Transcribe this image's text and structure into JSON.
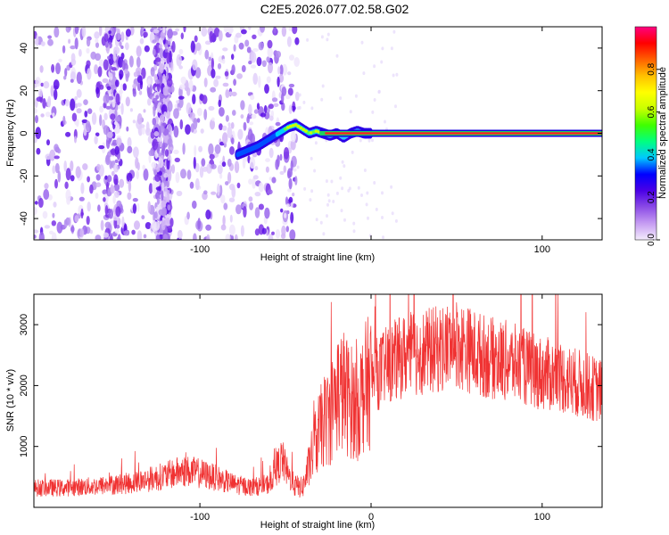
{
  "page": {
    "title": "C2E5.2026.077.02.58.G02"
  },
  "chart_data": [
    {
      "type": "heatmap",
      "name": "spectrogram",
      "xlabel": "Height of straight line (km)",
      "ylabel": "Frequency (Hz)",
      "xlim": [
        -197,
        135
      ],
      "ylim": [
        -50,
        50
      ],
      "x_ticks": [
        -100,
        0,
        100
      ],
      "x_tick_labels": [
        "-100",
        "",
        "100"
      ],
      "y_ticks": [
        -40,
        -20,
        0,
        20,
        40
      ],
      "y_tick_labels": [
        "-40",
        "-20",
        "0",
        "20",
        "40"
      ],
      "noise_region_x": [
        -197,
        -43
      ],
      "signal_track": {
        "x": [
          -78,
          -72,
          -66,
          -60,
          -56,
          -52,
          -48,
          -44,
          -40,
          -36,
          -32,
          -28,
          -24,
          -20,
          -16,
          -12,
          -8,
          -4,
          0,
          20,
          40,
          60,
          80,
          100,
          120,
          135
        ],
        "frequency": [
          -10,
          -8,
          -6,
          -3,
          -1,
          1,
          3,
          4,
          2,
          0,
          1,
          0,
          -1,
          0,
          -2,
          0,
          1,
          0,
          0,
          0,
          0,
          0,
          0,
          0,
          0,
          0
        ]
      },
      "colorbar": {
        "label": "Normalized spectral amplitude",
        "range": [
          0,
          1
        ],
        "ticks": [
          0.0,
          0.2,
          0.4,
          0.6,
          0.8
        ],
        "tick_labels": [
          "0.0",
          "0.2",
          "0.4",
          "0.6",
          "0.8"
        ],
        "colormap": [
          "#f4ecfc",
          "#c69cf2",
          "#8b4be6",
          "#4b00e6",
          "#0000ff",
          "#00c8ff",
          "#00ff80",
          "#40ff00",
          "#c8ff00",
          "#ffff00",
          "#ffc000",
          "#ff6000",
          "#ff0000",
          "#ff0080"
        ]
      }
    },
    {
      "type": "line",
      "name": "snr",
      "xlabel": "Height of straight line (km)",
      "ylabel": "SNR (10 * v/v)",
      "xlim": [
        -197,
        135
      ],
      "ylim": [
        0,
        3500
      ],
      "x_ticks": [
        -100,
        0,
        100
      ],
      "x_tick_labels": [
        "-100",
        "0",
        "100"
      ],
      "y_ticks": [
        1000,
        2000,
        3000
      ],
      "y_tick_labels": [
        "1000",
        "2000",
        "3000"
      ],
      "color": "#f03232",
      "series": [
        {
          "name": "SNR",
          "x": [
            -197,
            -180,
            -160,
            -140,
            -120,
            -110,
            -100,
            -90,
            -80,
            -70,
            -60,
            -52,
            -48,
            -44,
            -40,
            -36,
            -32,
            -28,
            -24,
            -20,
            -16,
            -12,
            -8,
            -4,
            0,
            10,
            20,
            30,
            40,
            50,
            60,
            70,
            80,
            90,
            100,
            110,
            120,
            135
          ],
          "y": [
            320,
            320,
            350,
            400,
            520,
            600,
            560,
            480,
            380,
            330,
            380,
            800,
            500,
            350,
            320,
            700,
            1100,
            1400,
            1500,
            1900,
            1900,
            1750,
            1650,
            1950,
            2100,
            2350,
            2500,
            2550,
            2600,
            2700,
            2550,
            2450,
            2400,
            2300,
            2200,
            2150,
            2050,
            1900
          ]
        }
      ]
    }
  ]
}
